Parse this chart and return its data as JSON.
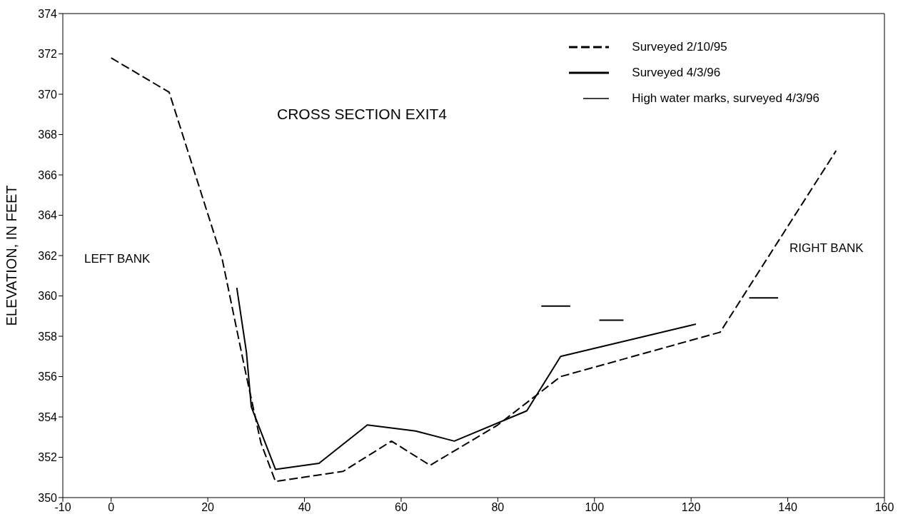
{
  "chart_data": {
    "type": "line",
    "title": "CROSS SECTION EXIT4",
    "ylabel": "ELEVATION, IN FEET",
    "annotations": [
      "LEFT BANK",
      "RIGHT BANK"
    ],
    "xlim": [
      -10,
      160
    ],
    "xticks": [
      -10,
      0,
      20,
      40,
      60,
      80,
      100,
      120,
      140,
      160
    ],
    "ylim": [
      350,
      374
    ],
    "yticks": [
      350,
      352,
      354,
      356,
      358,
      360,
      362,
      364,
      366,
      368,
      370,
      372,
      374
    ],
    "legend": "top right",
    "marker": "none",
    "series": [
      {
        "name": "Surveyed 2/10/95",
        "color": "#000000",
        "line_style": "dashed",
        "x": [
          0,
          12,
          23,
          28,
          31,
          34,
          48,
          58,
          66,
          80,
          93,
          126,
          150
        ],
        "values": [
          371.8,
          370.1,
          361.8,
          356.0,
          352.7,
          350.8,
          351.3,
          352.8,
          351.6,
          353.6,
          356.0,
          358.2,
          367.2
        ]
      },
      {
        "name": "Surveyed 4/3/96",
        "color": "#000000",
        "line_style": "solid",
        "x": [
          26,
          28,
          29,
          34,
          43,
          53,
          63,
          71,
          86,
          93,
          121
        ],
        "values": [
          360.4,
          357.2,
          354.5,
          351.4,
          351.7,
          353.6,
          353.3,
          352.8,
          354.3,
          357.0,
          358.6
        ]
      },
      {
        "name": "High water marks, surveyed 4/3/96",
        "color": "#000000",
        "line_style": "solid",
        "x": [
          89,
          95,
          98,
          101,
          106,
          120,
          132,
          138
        ],
        "values": [
          359.5,
          359.5,
          null,
          358.8,
          358.8,
          null,
          359.9,
          359.9
        ]
      }
    ]
  }
}
